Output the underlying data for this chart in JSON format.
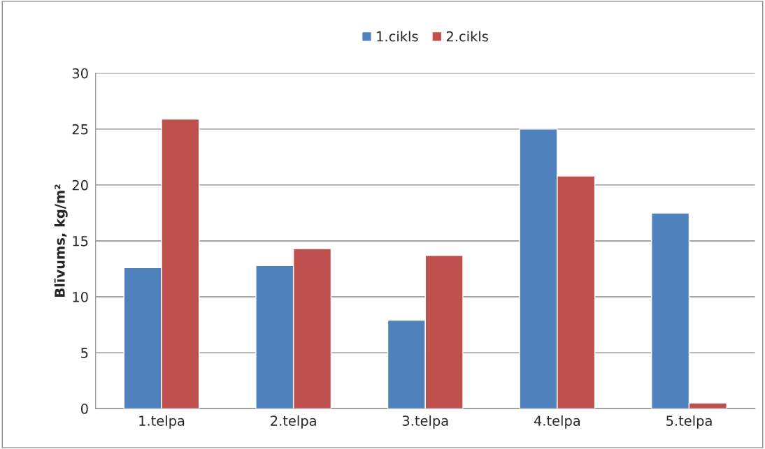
{
  "chart_data": {
    "type": "bar",
    "ylabel": "Blīvums, kg/m²",
    "categories": [
      "1.telpa",
      "2.telpa",
      "3.telpa",
      "4.telpa",
      "5.telpa"
    ],
    "series": [
      {
        "name": "1.cikls",
        "color": "#4f81bd",
        "values": [
          12.6,
          12.8,
          7.9,
          25.0,
          17.5
        ]
      },
      {
        "name": "2.cikls",
        "color": "#c0504d",
        "values": [
          25.9,
          14.3,
          13.7,
          20.8,
          0.5
        ]
      }
    ],
    "ylim": [
      0,
      30
    ],
    "yticks": [
      0,
      5,
      10,
      15,
      20,
      25,
      30
    ],
    "grid": "y",
    "legend": "top"
  }
}
